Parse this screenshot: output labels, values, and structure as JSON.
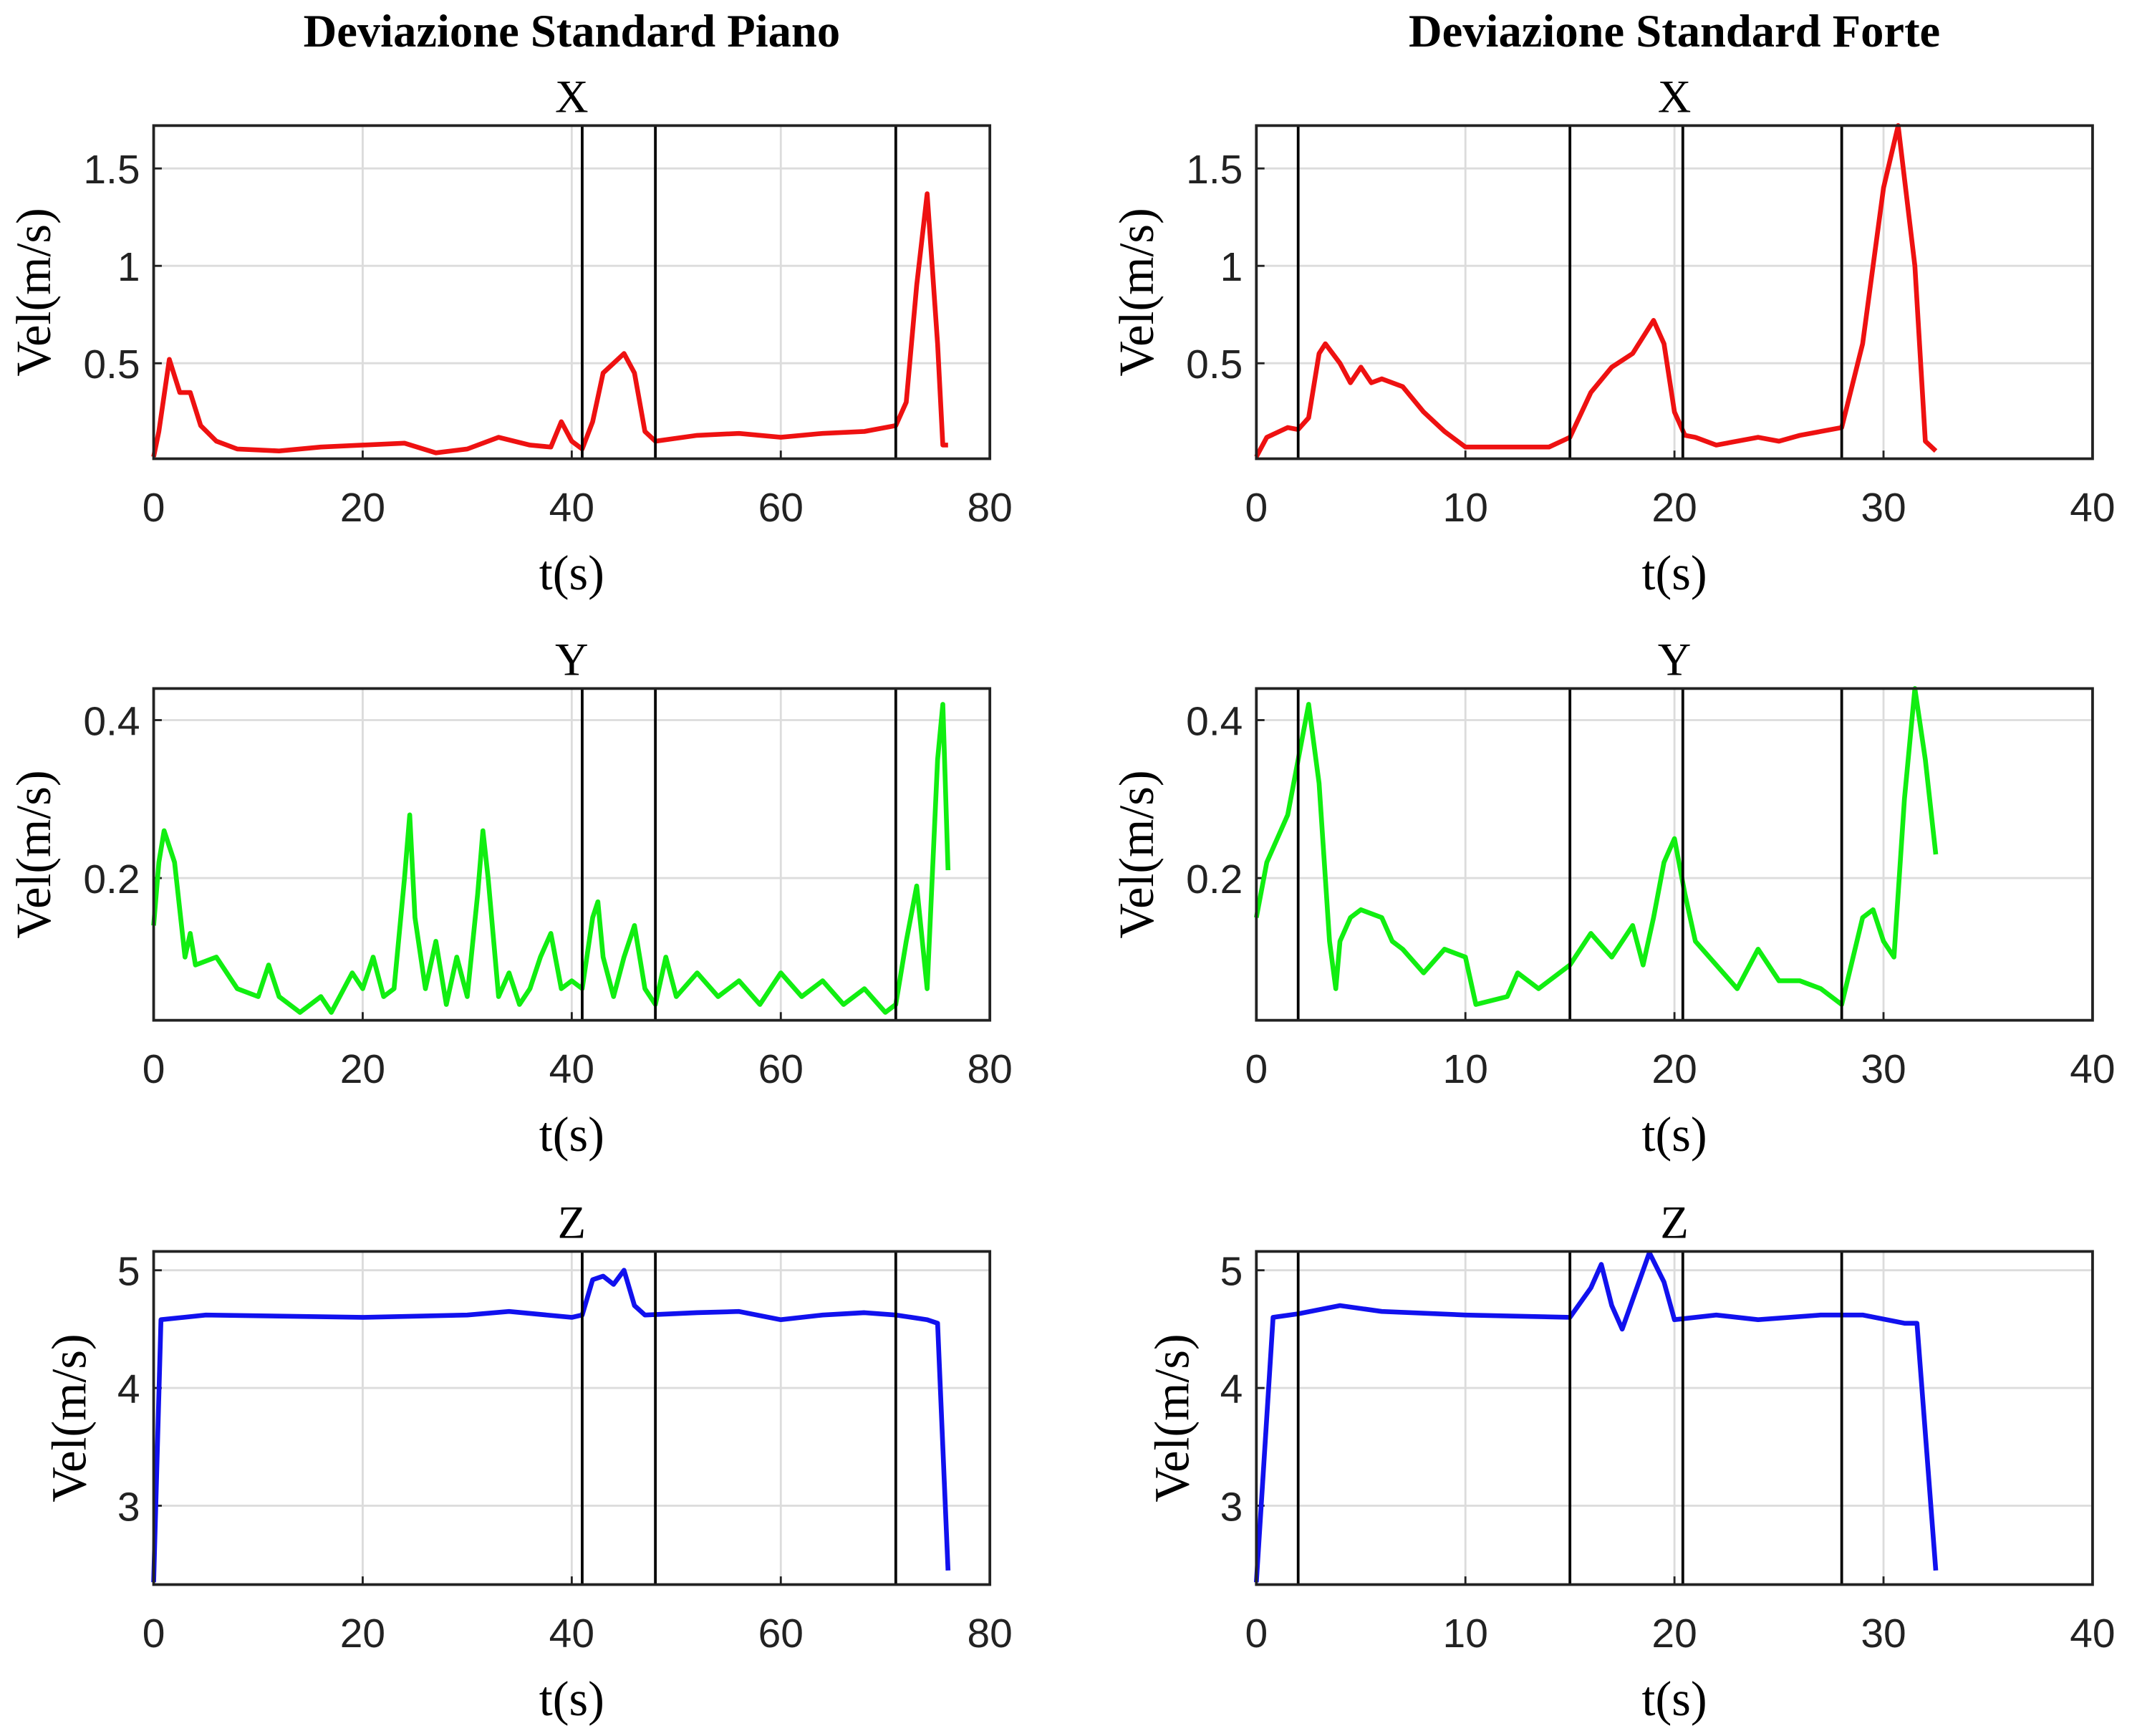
{
  "chart_data": [
    {
      "type": "line",
      "header": "Deviazione Standard Piano",
      "title": "X",
      "xlabel": "t(s)",
      "ylabel": "Vel(m/s)",
      "x": [
        0,
        0.5,
        1.5,
        2.5,
        3.5,
        4.5,
        6,
        8,
        12,
        16,
        20,
        24,
        27,
        30,
        33,
        36,
        38,
        39,
        40,
        41,
        42,
        43,
        45,
        46,
        47,
        48,
        52,
        56,
        60,
        64,
        68,
        71,
        72,
        73,
        74,
        75,
        75.5,
        76
      ],
      "series": [
        {
          "color": "#ee1111",
          "values": [
            0.02,
            0.15,
            0.52,
            0.35,
            0.35,
            0.18,
            0.1,
            0.06,
            0.05,
            0.07,
            0.08,
            0.09,
            0.04,
            0.06,
            0.12,
            0.08,
            0.07,
            0.2,
            0.1,
            0.06,
            0.2,
            0.45,
            0.55,
            0.45,
            0.15,
            0.1,
            0.13,
            0.14,
            0.12,
            0.14,
            0.15,
            0.18,
            0.3,
            0.9,
            1.37,
            0.6,
            0.08,
            0.08
          ]
        }
      ],
      "xlim": [
        0,
        80
      ],
      "xticks": [
        0,
        20,
        40,
        60,
        80
      ],
      "ylim": [
        0.01,
        1.72
      ],
      "yticks": [
        0.5,
        1,
        1.5
      ],
      "grid": true,
      "vlines": [
        41,
        48,
        71
      ]
    },
    {
      "type": "line",
      "header": "Deviazione Standard Forte",
      "title": "X",
      "xlabel": "t(s)",
      "ylabel": "Vel(m/s)",
      "x": [
        0,
        0.5,
        1.5,
        2,
        2.5,
        3,
        3.3,
        4,
        4.5,
        5,
        5.5,
        6,
        7,
        8,
        9,
        10,
        12,
        14,
        15,
        16,
        17,
        18,
        19,
        19.5,
        20,
        20.5,
        21,
        22,
        24,
        25,
        26,
        28,
        29,
        30,
        30.7,
        31.5,
        32,
        32.5
      ],
      "series": [
        {
          "color": "#ee1111",
          "values": [
            0.02,
            0.12,
            0.17,
            0.16,
            0.22,
            0.55,
            0.6,
            0.5,
            0.4,
            0.48,
            0.4,
            0.42,
            0.38,
            0.25,
            0.15,
            0.07,
            0.07,
            0.07,
            0.12,
            0.35,
            0.48,
            0.55,
            0.72,
            0.6,
            0.25,
            0.13,
            0.12,
            0.08,
            0.12,
            0.1,
            0.13,
            0.17,
            0.6,
            1.4,
            1.72,
            1.0,
            0.1,
            0.05
          ]
        }
      ],
      "xlim": [
        0,
        40
      ],
      "xticks": [
        0,
        10,
        20,
        30,
        40
      ],
      "ylim": [
        0.01,
        1.72
      ],
      "yticks": [
        0.5,
        1,
        1.5
      ],
      "grid": true,
      "vlines": [
        2,
        15,
        20.4,
        28
      ]
    },
    {
      "type": "line",
      "title": "Y",
      "xlabel": "t(s)",
      "ylabel": "Vel(m/s)",
      "x": [
        0,
        0.5,
        1,
        2,
        3,
        3.5,
        4,
        6,
        8,
        10,
        11,
        12,
        14,
        16,
        17,
        19,
        20,
        21,
        22,
        23,
        24,
        24.5,
        25,
        26,
        27,
        28,
        29,
        30,
        31,
        31.5,
        32,
        33,
        34,
        35,
        36,
        37,
        38,
        39,
        40,
        41,
        42,
        42.5,
        43,
        44,
        45,
        46,
        47,
        48,
        49,
        50,
        52,
        54,
        56,
        58,
        60,
        62,
        64,
        66,
        68,
        70,
        71,
        72,
        73,
        74,
        75,
        75.5,
        76
      ],
      "series": [
        {
          "color": "#11ee11",
          "values": [
            0.14,
            0.22,
            0.26,
            0.22,
            0.1,
            0.13,
            0.09,
            0.1,
            0.06,
            0.05,
            0.09,
            0.05,
            0.03,
            0.05,
            0.03,
            0.08,
            0.06,
            0.1,
            0.05,
            0.06,
            0.2,
            0.28,
            0.15,
            0.06,
            0.12,
            0.04,
            0.1,
            0.05,
            0.18,
            0.26,
            0.2,
            0.05,
            0.08,
            0.04,
            0.06,
            0.1,
            0.13,
            0.06,
            0.07,
            0.06,
            0.15,
            0.17,
            0.1,
            0.05,
            0.1,
            0.14,
            0.06,
            0.04,
            0.1,
            0.05,
            0.08,
            0.05,
            0.07,
            0.04,
            0.08,
            0.05,
            0.07,
            0.04,
            0.06,
            0.03,
            0.04,
            0.12,
            0.19,
            0.06,
            0.35,
            0.42,
            0.21
          ]
        }
      ],
      "xlim": [
        0,
        80
      ],
      "xticks": [
        0,
        20,
        40,
        60,
        80
      ],
      "ylim": [
        0.02,
        0.44
      ],
      "yticks": [
        0.2,
        0.4
      ],
      "grid": true,
      "vlines": [
        41,
        48,
        71
      ]
    },
    {
      "type": "line",
      "title": "Y",
      "xlabel": "t(s)",
      "ylabel": "Vel(m/s)",
      "x": [
        0,
        0.5,
        1,
        1.5,
        2,
        2.5,
        3,
        3.5,
        3.8,
        4,
        4.5,
        5,
        6,
        6.5,
        7,
        8,
        9,
        10,
        10.5,
        12,
        12.5,
        13.5,
        15,
        16,
        17,
        18,
        18.5,
        19,
        19.5,
        20,
        20.5,
        21,
        22,
        23,
        24,
        25,
        26,
        27,
        28,
        29,
        29.5,
        30,
        30.5,
        31,
        31.5,
        32,
        32.5
      ],
      "series": [
        {
          "color": "#11ee11",
          "values": [
            0.15,
            0.22,
            0.25,
            0.28,
            0.35,
            0.42,
            0.32,
            0.12,
            0.06,
            0.12,
            0.15,
            0.16,
            0.15,
            0.12,
            0.11,
            0.08,
            0.11,
            0.1,
            0.04,
            0.05,
            0.08,
            0.06,
            0.09,
            0.13,
            0.1,
            0.14,
            0.09,
            0.15,
            0.22,
            0.25,
            0.18,
            0.12,
            0.09,
            0.06,
            0.11,
            0.07,
            0.07,
            0.06,
            0.04,
            0.15,
            0.16,
            0.12,
            0.1,
            0.3,
            0.44,
            0.35,
            0.23
          ]
        }
      ],
      "xlim": [
        0,
        40
      ],
      "xticks": [
        0,
        10,
        20,
        30,
        40
      ],
      "ylim": [
        0.02,
        0.44
      ],
      "yticks": [
        0.2,
        0.4
      ],
      "grid": true,
      "vlines": [
        2,
        15,
        20.4,
        28
      ]
    },
    {
      "type": "line",
      "title": "Z",
      "xlabel": "t(s)",
      "ylabel": "Vel(m/s)",
      "x": [
        0,
        0.7,
        5,
        20,
        30,
        34,
        40,
        41,
        42,
        43,
        44,
        45,
        46,
        47,
        52,
        56,
        60,
        64,
        68,
        71,
        74,
        75,
        76
      ],
      "series": [
        {
          "color": "#1111ee",
          "values": [
            2.35,
            4.58,
            4.62,
            4.6,
            4.62,
            4.65,
            4.6,
            4.62,
            4.92,
            4.95,
            4.88,
            5.0,
            4.7,
            4.62,
            4.64,
            4.65,
            4.58,
            4.62,
            4.64,
            4.62,
            4.58,
            4.55,
            2.45
          ]
        }
      ],
      "xlim": [
        0,
        80
      ],
      "xticks": [
        0,
        20,
        40,
        60,
        80
      ],
      "ylim": [
        2.33,
        5.16
      ],
      "yticks": [
        3,
        4,
        5
      ],
      "grid": true,
      "vlines": [
        41,
        48,
        71
      ]
    },
    {
      "type": "line",
      "title": "Z",
      "xlabel": "t(s)",
      "ylabel": "Vel(m/s)",
      "x": [
        0,
        0.8,
        2,
        4,
        6,
        10,
        15,
        16,
        16.5,
        17,
        17.5,
        18,
        18.8,
        19.5,
        20,
        22,
        24,
        27,
        29,
        31,
        31.6,
        32.5
      ],
      "series": [
        {
          "color": "#1111ee",
          "values": [
            2.35,
            4.6,
            4.63,
            4.7,
            4.65,
            4.62,
            4.6,
            4.85,
            5.05,
            4.7,
            4.5,
            4.75,
            5.15,
            4.9,
            4.58,
            4.62,
            4.58,
            4.62,
            4.62,
            4.55,
            4.55,
            2.45
          ]
        }
      ],
      "xlim": [
        0,
        40
      ],
      "xticks": [
        0,
        10,
        20,
        30,
        40
      ],
      "ylim": [
        2.33,
        5.16
      ],
      "yticks": [
        3,
        4,
        5
      ],
      "grid": true,
      "vlines": [
        2,
        15,
        20.4,
        28
      ]
    }
  ]
}
